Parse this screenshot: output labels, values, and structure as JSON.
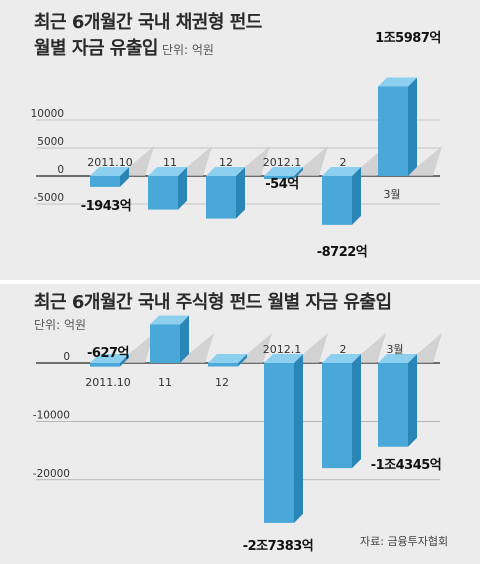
{
  "source": "자료: 금융투자협회",
  "chart_data": [
    {
      "type": "bar",
      "title": "최근 6개월간 국내 채권형 펀드",
      "title_line2": "월별 자금 유출입",
      "unit_label": "단위: 억원",
      "categories": [
        "2011.10",
        "11",
        "12",
        "2012.1",
        "2",
        "3월"
      ],
      "values": [
        -1943,
        -6000,
        -7600,
        -54,
        -8722,
        15987
      ],
      "value_labels": [
        "-1943억",
        "",
        "",
        "-54억",
        "-8722억",
        "1조5987억"
      ],
      "yticks": [
        10000,
        5000,
        0,
        -5000
      ],
      "ylim": [
        -9500,
        17500
      ],
      "colors": {
        "front": "#4aa8d8",
        "side": "#2a86b6",
        "top": "#8ccfee",
        "shadow": "#c9c9c9"
      }
    },
    {
      "type": "bar",
      "title": "최근 6개월간 국내 주식형 펀드 월별 자금 유출입",
      "unit_label": "단위: 억원",
      "categories": [
        "2011.10",
        "11",
        "12",
        "2012.1",
        "2",
        "3월"
      ],
      "values": [
        -627,
        6600,
        -600,
        -27383,
        -18000,
        -14345
      ],
      "value_labels": [
        "-627억",
        "",
        "",
        "-2조7383억",
        "",
        "-1조4345억"
      ],
      "yticks": [
        0,
        -10000,
        -20000
      ],
      "ylim": [
        -30000,
        9000
      ],
      "colors": {
        "front": "#4aa8d8",
        "side": "#2a86b6",
        "top": "#8ccfee",
        "shadow": "#c9c9c9"
      }
    }
  ]
}
